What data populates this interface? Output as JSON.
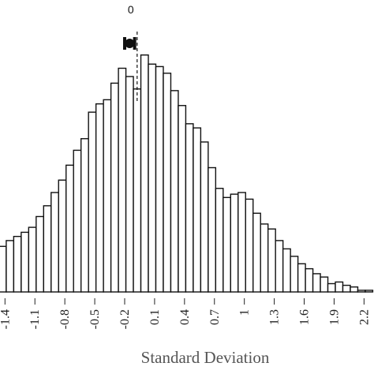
{
  "chart_data": {
    "type": "bar",
    "xlabel": "Standard Deviation",
    "ylabel": "",
    "title": "",
    "x_ticks": [
      "-1.4",
      "-1.1",
      "-0.8",
      "-0.5",
      "-0.2",
      "0.1",
      "0.4",
      "0.7",
      "1",
      "1.3",
      "1.6",
      "1.9",
      "2.2"
    ],
    "xlim": [
      -1.45,
      2.3
    ],
    "bin_width": 0.075,
    "bins": [
      {
        "x": -1.425,
        "count": 55
      },
      {
        "x": -1.35,
        "count": 62
      },
      {
        "x": -1.275,
        "count": 67
      },
      {
        "x": -1.2,
        "count": 72
      },
      {
        "x": -1.125,
        "count": 78
      },
      {
        "x": -1.05,
        "count": 91
      },
      {
        "x": -0.975,
        "count": 104
      },
      {
        "x": -0.9,
        "count": 120
      },
      {
        "x": -0.825,
        "count": 135
      },
      {
        "x": -0.75,
        "count": 153
      },
      {
        "x": -0.675,
        "count": 171
      },
      {
        "x": -0.6,
        "count": 185
      },
      {
        "x": -0.525,
        "count": 217
      },
      {
        "x": -0.45,
        "count": 227
      },
      {
        "x": -0.375,
        "count": 232
      },
      {
        "x": -0.3,
        "count": 252
      },
      {
        "x": -0.225,
        "count": 270
      },
      {
        "x": -0.15,
        "count": 260
      },
      {
        "x": -0.075,
        "count": 245
      },
      {
        "x": 0.0,
        "count": 286
      },
      {
        "x": 0.075,
        "count": 275
      },
      {
        "x": 0.15,
        "count": 272
      },
      {
        "x": 0.225,
        "count": 264
      },
      {
        "x": 0.3,
        "count": 243
      },
      {
        "x": 0.375,
        "count": 225
      },
      {
        "x": 0.45,
        "count": 203
      },
      {
        "x": 0.525,
        "count": 198
      },
      {
        "x": 0.6,
        "count": 181
      },
      {
        "x": 0.675,
        "count": 150
      },
      {
        "x": 0.75,
        "count": 125
      },
      {
        "x": 0.825,
        "count": 114
      },
      {
        "x": 0.9,
        "count": 118
      },
      {
        "x": 0.975,
        "count": 120
      },
      {
        "x": 1.05,
        "count": 112
      },
      {
        "x": 1.125,
        "count": 95
      },
      {
        "x": 1.2,
        "count": 82
      },
      {
        "x": 1.275,
        "count": 76
      },
      {
        "x": 1.35,
        "count": 62
      },
      {
        "x": 1.425,
        "count": 52
      },
      {
        "x": 1.5,
        "count": 43
      },
      {
        "x": 1.575,
        "count": 34
      },
      {
        "x": 1.65,
        "count": 28
      },
      {
        "x": 1.725,
        "count": 22
      },
      {
        "x": 1.8,
        "count": 18
      },
      {
        "x": 1.875,
        "count": 10
      },
      {
        "x": 1.95,
        "count": 12
      },
      {
        "x": 2.025,
        "count": 8
      },
      {
        "x": 2.1,
        "count": 6
      },
      {
        "x": 2.175,
        "count": 2
      },
      {
        "x": 2.25,
        "count": 2
      }
    ],
    "ylim": [
      0,
      300
    ],
    "reference_line": {
      "x": -0.075,
      "label": "0"
    },
    "point_estimate": {
      "x": -0.15,
      "ci": [
        -0.2,
        -0.1
      ]
    }
  }
}
